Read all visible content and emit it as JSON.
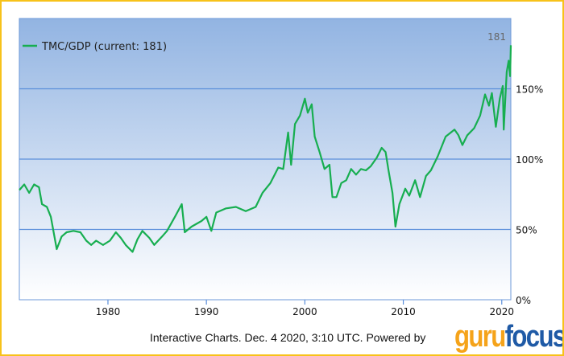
{
  "chart_data": {
    "type": "line",
    "title": "",
    "xlabel": "",
    "ylabel": "",
    "xlim": [
      1971,
      2020.92
    ],
    "ylim": [
      0,
      200
    ],
    "grid": true,
    "legend": "top-left",
    "x_ticks": [
      1980,
      1990,
      2000,
      2010,
      2020
    ],
    "y_ticks": [
      {
        "value": 0,
        "label": "0%"
      },
      {
        "value": 50,
        "label": "50%"
      },
      {
        "value": 100,
        "label": "100%"
      },
      {
        "value": 150,
        "label": "150%"
      }
    ],
    "series": [
      {
        "name": "TMC/GDP (current: 181)",
        "color": "#17ae50",
        "x": [
          1971,
          1971.5,
          1972,
          1972.5,
          1973,
          1973.3,
          1973.8,
          1974.2,
          1974.8,
          1975.3,
          1975.8,
          1976.5,
          1977.2,
          1977.8,
          1978.3,
          1978.8,
          1979.5,
          1980.2,
          1980.8,
          1981.3,
          1981.8,
          1982.5,
          1983,
          1983.5,
          1984.2,
          1984.7,
          1985.5,
          1986,
          1986.8,
          1987.5,
          1987.8,
          1988.5,
          1989.5,
          1990,
          1990.5,
          1991,
          1992,
          1993,
          1994,
          1995,
          1995.7,
          1996.5,
          1997.3,
          1997.8,
          1998.3,
          1998.6,
          1999,
          1999.5,
          2000,
          2000.3,
          2000.7,
          2001,
          2001.5,
          2002,
          2002.5,
          2002.8,
          2003.2,
          2003.7,
          2004.2,
          2004.7,
          2005.2,
          2005.7,
          2006.2,
          2006.7,
          2007.3,
          2007.8,
          2008.2,
          2008.5,
          2008.9,
          2009.2,
          2009.6,
          2010.2,
          2010.6,
          2011.2,
          2011.7,
          2012.3,
          2012.8,
          2013.5,
          2014.3,
          2015.2,
          2015.6,
          2016,
          2016.5,
          2017.2,
          2017.8,
          2018.3,
          2018.7,
          2019,
          2019.4,
          2019.8,
          2020.1,
          2020.2,
          2020.5,
          2020.7,
          2020.85,
          2020.92
        ],
        "values": [
          78,
          82,
          76,
          82,
          80,
          68,
          66,
          59,
          36,
          45,
          48,
          49,
          48,
          42,
          39,
          42,
          39,
          42,
          48,
          44,
          39,
          34,
          43,
          49,
          44,
          39,
          45,
          49,
          59,
          68,
          48,
          52,
          56,
          59,
          49,
          62,
          65,
          66,
          63,
          66,
          76,
          83,
          94,
          93,
          119,
          96,
          125,
          131,
          143,
          133,
          139,
          116,
          105,
          93,
          96,
          73,
          73,
          83,
          85,
          93,
          89,
          93,
          92,
          95,
          101,
          108,
          105,
          92,
          76,
          52,
          68,
          79,
          74,
          85,
          73,
          88,
          92,
          102,
          116,
          121,
          117,
          110,
          117,
          122,
          131,
          146,
          138,
          147,
          123,
          143,
          152,
          121,
          162,
          170,
          159,
          181
        ]
      }
    ],
    "annotations": [
      {
        "text": "181"
      }
    ]
  },
  "legend": {
    "label": "TMC/GDP (current: 181)"
  },
  "last_value_label": "181",
  "footer": {
    "text": "Interactive Charts. Dec. 4 2020, 3:10 UTC. Powered by"
  },
  "logo": {
    "part1": "guru",
    "part2": "focus"
  }
}
